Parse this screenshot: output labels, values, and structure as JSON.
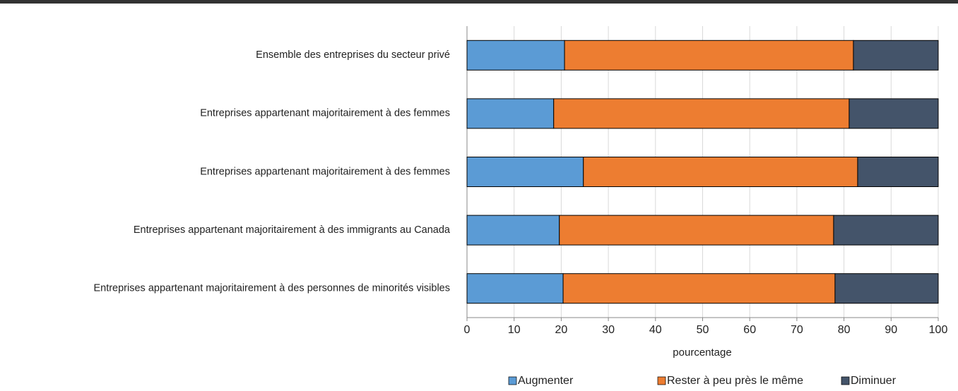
{
  "chart_data": {
    "type": "stacked-barh",
    "categories": [
      "Ensemble des entreprises du secteur privé",
      "Entreprises appartenant majoritairement à des femmes",
      "Entreprises appartenant majoritairement à des femmes",
      "Entreprises appartenant majoritairement à des immigrants au Canada",
      "Entreprises appartenant majoritairement à des personnes de minorités visibles"
    ],
    "series": [
      {
        "name": "Augmenter",
        "color": "#5b9bd5",
        "values": [
          20.7,
          18.4,
          24.7,
          19.6,
          20.4
        ]
      },
      {
        "name": "Rester à peu près le même",
        "color": "#ed7d31",
        "values": [
          61.3,
          62.7,
          58.2,
          58.2,
          57.7
        ]
      },
      {
        "name": "Diminuer",
        "color": "#44546a",
        "values": [
          18.0,
          18.9,
          17.1,
          22.2,
          21.9
        ]
      }
    ],
    "xlabel": "pourcentage",
    "xlim": [
      0,
      100
    ],
    "xticks": [
      0,
      10,
      20,
      30,
      40,
      50,
      60,
      70,
      80,
      90,
      100
    ],
    "grid": true,
    "legend": "bottom"
  }
}
